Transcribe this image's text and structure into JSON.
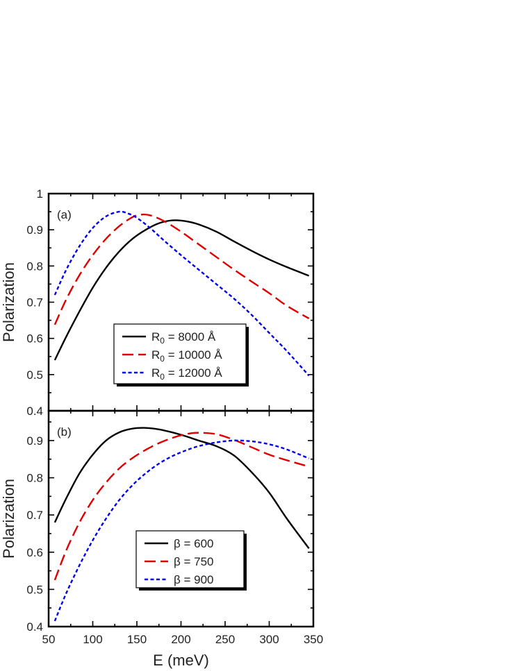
{
  "colors": {
    "black": "#000000",
    "red": "#e00000",
    "blue": "#0000ee"
  },
  "chart_data": [
    {
      "type": "line",
      "panel_label": "(a)",
      "xlim": [
        50,
        350
      ],
      "ylim": [
        0.4,
        1.0
      ],
      "x_ticks": [
        "50",
        "100",
        "150",
        "200",
        "250",
        "300",
        "350"
      ],
      "y_ticks": [
        "0.4",
        "0.5",
        "0.6",
        "0.7",
        "0.8",
        "0.9",
        "1"
      ],
      "ylabel": "Polarization",
      "xlabel": "",
      "legend_position": "bottom-center",
      "series": [
        {
          "name": "R₀ = 8000 Å",
          "legend_main": "R",
          "legend_sub": "0",
          "legend_rest": " = 8000 Å",
          "color": "black",
          "dash": "solid",
          "x": [
            57,
            70,
            85,
            100,
            115,
            130,
            145,
            160,
            175,
            190,
            205,
            220,
            240,
            260,
            280,
            300,
            320,
            345
          ],
          "y": [
            0.54,
            0.605,
            0.675,
            0.74,
            0.795,
            0.84,
            0.875,
            0.9,
            0.918,
            0.926,
            0.924,
            0.915,
            0.895,
            0.868,
            0.842,
            0.818,
            0.797,
            0.773
          ]
        },
        {
          "name": "R₀ = 10000 Å",
          "legend_main": "R",
          "legend_sub": "0",
          "legend_rest": " = 10000 Å",
          "color": "red",
          "dash": "long-dash",
          "x": [
            57,
            70,
            85,
            100,
            115,
            130,
            145,
            155,
            165,
            180,
            200,
            220,
            240,
            260,
            280,
            300,
            320,
            345
          ],
          "y": [
            0.638,
            0.708,
            0.775,
            0.83,
            0.875,
            0.91,
            0.935,
            0.942,
            0.94,
            0.925,
            0.895,
            0.86,
            0.825,
            0.79,
            0.757,
            0.725,
            0.69,
            0.655
          ]
        },
        {
          "name": "R₀ = 12000 Å",
          "legend_main": "R",
          "legend_sub": "0",
          "legend_rest": " = 12000 Å",
          "color": "blue",
          "dash": "short-dash",
          "x": [
            57,
            70,
            85,
            100,
            115,
            130,
            140,
            150,
            165,
            180,
            200,
            220,
            240,
            260,
            280,
            300,
            320,
            345
          ],
          "y": [
            0.72,
            0.79,
            0.855,
            0.905,
            0.937,
            0.95,
            0.945,
            0.933,
            0.905,
            0.872,
            0.83,
            0.79,
            0.75,
            0.71,
            0.665,
            0.615,
            0.565,
            0.497
          ]
        }
      ]
    },
    {
      "type": "line",
      "panel_label": "(b)",
      "xlim": [
        50,
        350
      ],
      "ylim": [
        0.4,
        0.98
      ],
      "x_ticks": [
        "50",
        "100",
        "150",
        "200",
        "250",
        "300",
        "350"
      ],
      "y_ticks": [
        "0.4",
        "0.5",
        "0.6",
        "0.7",
        "0.8",
        "0.9"
      ],
      "ylabel": "Polarization",
      "xlabel": "E (meV)",
      "legend_position": "bottom-center",
      "series": [
        {
          "name": "β = 600",
          "legend_main": "β = 600",
          "color": "black",
          "dash": "solid",
          "x": [
            57,
            70,
            85,
            100,
            115,
            130,
            145,
            160,
            175,
            190,
            205,
            220,
            240,
            260,
            280,
            300,
            320,
            345
          ],
          "y": [
            0.68,
            0.745,
            0.812,
            0.862,
            0.9,
            0.922,
            0.932,
            0.934,
            0.93,
            0.922,
            0.912,
            0.9,
            0.885,
            0.86,
            0.815,
            0.76,
            0.69,
            0.61
          ]
        },
        {
          "name": "β = 750",
          "legend_main": "β = 750",
          "color": "red",
          "dash": "long-dash",
          "x": [
            57,
            70,
            85,
            100,
            115,
            130,
            145,
            160,
            175,
            190,
            205,
            220,
            240,
            260,
            280,
            300,
            320,
            345
          ],
          "y": [
            0.525,
            0.605,
            0.68,
            0.74,
            0.787,
            0.825,
            0.853,
            0.875,
            0.893,
            0.907,
            0.917,
            0.921,
            0.917,
            0.902,
            0.882,
            0.862,
            0.847,
            0.83
          ]
        },
        {
          "name": "β = 900",
          "legend_main": "β = 900",
          "color": "blue",
          "dash": "short-dash",
          "x": [
            57,
            70,
            85,
            100,
            115,
            130,
            145,
            160,
            175,
            190,
            205,
            220,
            240,
            260,
            280,
            300,
            320,
            345
          ],
          "y": [
            0.415,
            0.49,
            0.565,
            0.632,
            0.69,
            0.74,
            0.78,
            0.812,
            0.838,
            0.858,
            0.873,
            0.885,
            0.895,
            0.9,
            0.898,
            0.89,
            0.876,
            0.852
          ]
        }
      ]
    }
  ]
}
